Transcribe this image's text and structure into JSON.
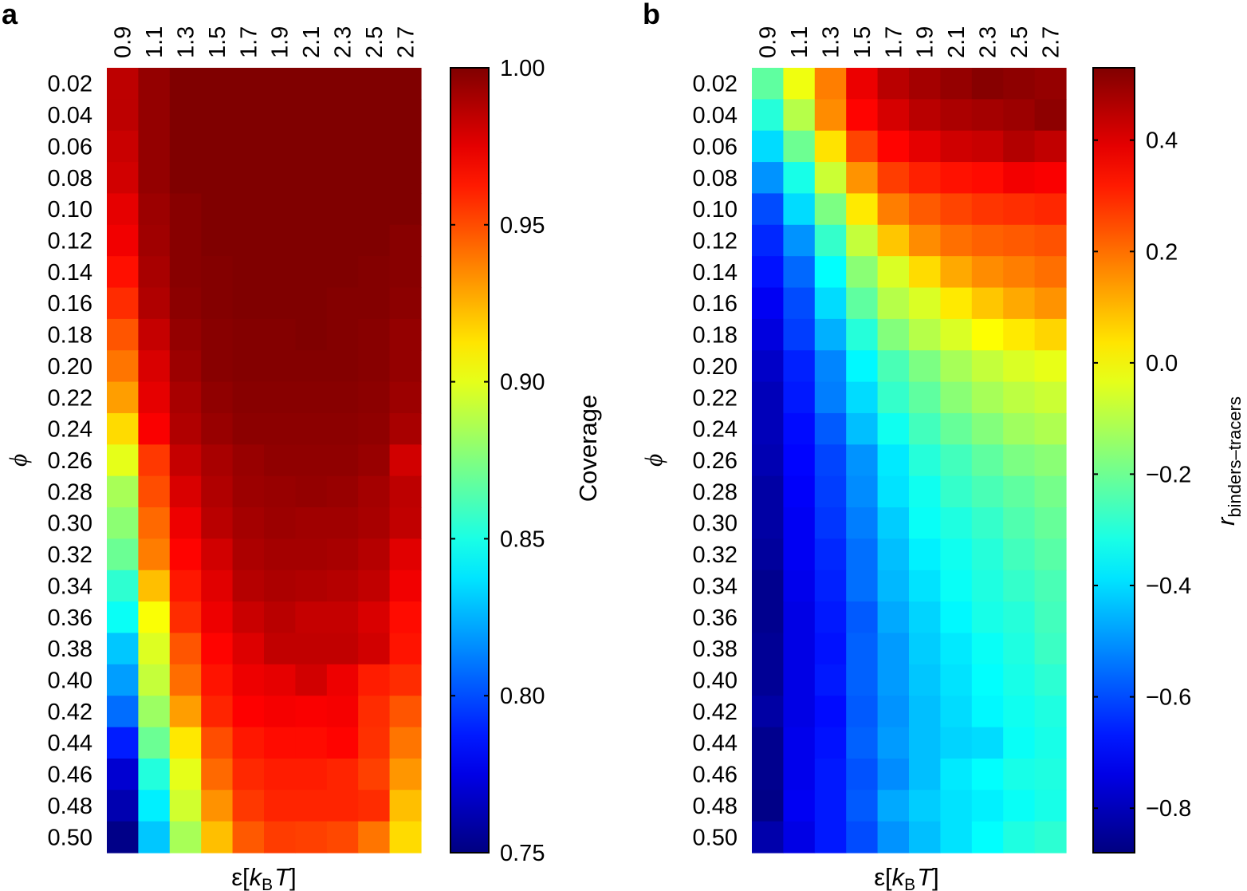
{
  "chart_data": [
    {
      "panel": "a",
      "type": "heatmap",
      "colormap": "jet",
      "x_ticks": [
        "0.9",
        "1.1",
        "1.3",
        "1.5",
        "1.7",
        "1.9",
        "2.1",
        "2.3",
        "2.5",
        "2.7"
      ],
      "y_ticks": [
        "0.02",
        "0.04",
        "0.06",
        "0.08",
        "0.10",
        "0.12",
        "0.14",
        "0.16",
        "0.18",
        "0.20",
        "0.22",
        "0.24",
        "0.26",
        "0.28",
        "0.30",
        "0.32",
        "0.34",
        "0.36",
        "0.38",
        "0.40",
        "0.42",
        "0.44",
        "0.46",
        "0.48",
        "0.50"
      ],
      "xlabel": {
        "pre": "ε[",
        "k": "k",
        "sub": "B",
        "T": "T",
        "post": "]"
      },
      "ylabel": "ϕ",
      "colorbar": {
        "label": "Coverage",
        "min": 0.75,
        "max": 1.0,
        "ticks": [
          "0.75",
          "0.80",
          "0.85",
          "0.90",
          "0.95",
          "1.00"
        ]
      },
      "values": [
        [
          0.985,
          0.995,
          1.0,
          1.0,
          1.0,
          1.0,
          1.0,
          1.0,
          1.0,
          1.0
        ],
        [
          0.985,
          0.995,
          1.0,
          1.0,
          1.0,
          1.0,
          1.0,
          1.0,
          1.0,
          1.0
        ],
        [
          0.982,
          0.995,
          1.0,
          1.0,
          1.0,
          1.0,
          1.0,
          1.0,
          1.0,
          1.0
        ],
        [
          0.98,
          0.995,
          1.0,
          1.0,
          1.0,
          1.0,
          1.0,
          1.0,
          1.0,
          1.0
        ],
        [
          0.975,
          0.993,
          0.998,
          1.0,
          1.0,
          1.0,
          1.0,
          1.0,
          1.0,
          1.0
        ],
        [
          0.972,
          0.992,
          0.998,
          1.0,
          1.0,
          1.0,
          1.0,
          1.0,
          1.0,
          0.998
        ],
        [
          0.965,
          0.99,
          0.998,
          0.999,
          1.0,
          1.0,
          1.0,
          1.0,
          0.999,
          0.998
        ],
        [
          0.958,
          0.988,
          0.997,
          0.999,
          1.0,
          1.0,
          1.0,
          0.999,
          0.999,
          0.997
        ],
        [
          0.948,
          0.983,
          0.995,
          0.998,
          0.999,
          0.999,
          1.0,
          0.999,
          0.998,
          0.995
        ],
        [
          0.94,
          0.978,
          0.993,
          0.998,
          0.999,
          0.999,
          0.999,
          0.999,
          0.998,
          0.995
        ],
        [
          0.93,
          0.975,
          0.99,
          0.996,
          0.998,
          0.998,
          0.998,
          0.998,
          0.997,
          0.993
        ],
        [
          0.915,
          0.97,
          0.988,
          0.994,
          0.997,
          0.997,
          0.997,
          0.997,
          0.996,
          0.99
        ],
        [
          0.9,
          0.955,
          0.983,
          0.99,
          0.994,
          0.996,
          0.996,
          0.996,
          0.994,
          0.98
        ],
        [
          0.885,
          0.95,
          0.978,
          0.988,
          0.993,
          0.994,
          0.995,
          0.994,
          0.991,
          0.985
        ],
        [
          0.878,
          0.943,
          0.973,
          0.986,
          0.991,
          0.993,
          0.992,
          0.992,
          0.99,
          0.984
        ],
        [
          0.87,
          0.938,
          0.968,
          0.98,
          0.989,
          0.991,
          0.991,
          0.99,
          0.987,
          0.976
        ],
        [
          0.855,
          0.922,
          0.963,
          0.976,
          0.987,
          0.989,
          0.988,
          0.987,
          0.984,
          0.972
        ],
        [
          0.846,
          0.905,
          0.958,
          0.973,
          0.982,
          0.986,
          0.983,
          0.983,
          0.978,
          0.966
        ],
        [
          0.83,
          0.898,
          0.948,
          0.968,
          0.977,
          0.984,
          0.984,
          0.984,
          0.98,
          0.964
        ],
        [
          0.82,
          0.892,
          0.942,
          0.964,
          0.973,
          0.975,
          0.98,
          0.973,
          0.962,
          0.958
        ],
        [
          0.808,
          0.882,
          0.93,
          0.96,
          0.969,
          0.971,
          0.97,
          0.971,
          0.958,
          0.948
        ],
        [
          0.788,
          0.87,
          0.912,
          0.95,
          0.963,
          0.966,
          0.966,
          0.968,
          0.957,
          0.94
        ],
        [
          0.77,
          0.852,
          0.9,
          0.943,
          0.959,
          0.962,
          0.962,
          0.96,
          0.953,
          0.932
        ],
        [
          0.762,
          0.84,
          0.895,
          0.933,
          0.955,
          0.96,
          0.96,
          0.96,
          0.958,
          0.922
        ],
        [
          0.752,
          0.83,
          0.885,
          0.922,
          0.947,
          0.954,
          0.953,
          0.951,
          0.94,
          0.915
        ]
      ]
    },
    {
      "panel": "b",
      "type": "heatmap",
      "colormap": "jet",
      "x_ticks": [
        "0.9",
        "1.1",
        "1.3",
        "1.5",
        "1.7",
        "1.9",
        "2.1",
        "2.3",
        "2.5",
        "2.7"
      ],
      "y_ticks": [
        "0.02",
        "0.04",
        "0.06",
        "0.08",
        "0.10",
        "0.12",
        "0.14",
        "0.16",
        "0.18",
        "0.20",
        "0.22",
        "0.24",
        "0.26",
        "0.28",
        "0.30",
        "0.32",
        "0.34",
        "0.36",
        "0.38",
        "0.40",
        "0.42",
        "0.44",
        "0.46",
        "0.48",
        "0.50"
      ],
      "xlabel": {
        "pre": "ε[",
        "k": "k",
        "sub": "B",
        "T": "T",
        "post": "]"
      },
      "ylabel": "ϕ",
      "colorbar": {
        "label_r": "r",
        "label_sub": "binders–tracers",
        "min": -0.88,
        "max": 0.53,
        "ticks": [
          "−0.8",
          "−0.6",
          "−0.4",
          "−0.2",
          "0.0",
          "0.2",
          "0.4"
        ],
        "tick_values": [
          -0.8,
          -0.6,
          -0.4,
          -0.2,
          0.0,
          0.2,
          0.4
        ]
      },
      "values": [
        [
          -0.22,
          -0.02,
          0.18,
          0.38,
          0.45,
          0.48,
          0.5,
          0.52,
          0.51,
          0.5
        ],
        [
          -0.3,
          -0.1,
          0.16,
          0.35,
          0.41,
          0.45,
          0.47,
          0.48,
          0.49,
          0.51
        ],
        [
          -0.4,
          -0.2,
          0.04,
          0.26,
          0.35,
          0.39,
          0.42,
          0.43,
          0.46,
          0.44
        ],
        [
          -0.5,
          -0.32,
          -0.07,
          0.15,
          0.27,
          0.31,
          0.33,
          0.34,
          0.37,
          0.36
        ],
        [
          -0.6,
          -0.4,
          -0.18,
          0.03,
          0.18,
          0.23,
          0.26,
          0.28,
          0.29,
          0.3
        ],
        [
          -0.65,
          -0.5,
          -0.28,
          -0.08,
          0.08,
          0.16,
          0.2,
          0.22,
          0.23,
          0.24
        ],
        [
          -0.68,
          -0.56,
          -0.35,
          -0.16,
          -0.05,
          0.05,
          0.12,
          0.16,
          0.18,
          0.2
        ],
        [
          -0.72,
          -0.6,
          -0.4,
          -0.22,
          -0.1,
          -0.05,
          0.03,
          0.08,
          0.12,
          0.15
        ],
        [
          -0.75,
          -0.62,
          -0.46,
          -0.3,
          -0.17,
          -0.1,
          -0.05,
          0.0,
          0.03,
          0.06
        ],
        [
          -0.78,
          -0.66,
          -0.52,
          -0.36,
          -0.25,
          -0.18,
          -0.12,
          -0.08,
          -0.05,
          -0.03
        ],
        [
          -0.8,
          -0.67,
          -0.53,
          -0.4,
          -0.28,
          -0.22,
          -0.16,
          -0.12,
          -0.09,
          -0.07
        ],
        [
          -0.8,
          -0.69,
          -0.58,
          -0.44,
          -0.33,
          -0.26,
          -0.21,
          -0.17,
          -0.13,
          -0.11
        ],
        [
          -0.81,
          -0.7,
          -0.61,
          -0.5,
          -0.38,
          -0.3,
          -0.26,
          -0.22,
          -0.18,
          -0.16
        ],
        [
          -0.83,
          -0.71,
          -0.62,
          -0.51,
          -0.39,
          -0.33,
          -0.28,
          -0.25,
          -0.22,
          -0.19
        ],
        [
          -0.83,
          -0.72,
          -0.63,
          -0.53,
          -0.42,
          -0.34,
          -0.31,
          -0.28,
          -0.24,
          -0.21
        ],
        [
          -0.84,
          -0.72,
          -0.65,
          -0.55,
          -0.44,
          -0.37,
          -0.33,
          -0.3,
          -0.26,
          -0.23
        ],
        [
          -0.86,
          -0.73,
          -0.66,
          -0.55,
          -0.45,
          -0.39,
          -0.34,
          -0.31,
          -0.28,
          -0.25
        ],
        [
          -0.86,
          -0.74,
          -0.67,
          -0.58,
          -0.47,
          -0.41,
          -0.36,
          -0.32,
          -0.3,
          -0.26
        ],
        [
          -0.85,
          -0.74,
          -0.68,
          -0.57,
          -0.49,
          -0.42,
          -0.38,
          -0.34,
          -0.31,
          -0.27
        ],
        [
          -0.85,
          -0.74,
          -0.67,
          -0.57,
          -0.49,
          -0.43,
          -0.39,
          -0.35,
          -0.32,
          -0.29
        ],
        [
          -0.83,
          -0.74,
          -0.69,
          -0.58,
          -0.5,
          -0.44,
          -0.4,
          -0.36,
          -0.33,
          -0.31
        ],
        [
          -0.86,
          -0.73,
          -0.68,
          -0.57,
          -0.49,
          -0.44,
          -0.41,
          -0.4,
          -0.34,
          -0.32
        ],
        [
          -0.86,
          -0.73,
          -0.67,
          -0.59,
          -0.51,
          -0.44,
          -0.38,
          -0.35,
          -0.32,
          -0.31
        ],
        [
          -0.87,
          -0.72,
          -0.67,
          -0.58,
          -0.47,
          -0.42,
          -0.39,
          -0.37,
          -0.34,
          -0.32
        ],
        [
          -0.82,
          -0.74,
          -0.67,
          -0.6,
          -0.5,
          -0.44,
          -0.39,
          -0.35,
          -0.31,
          -0.29
        ]
      ]
    }
  ]
}
